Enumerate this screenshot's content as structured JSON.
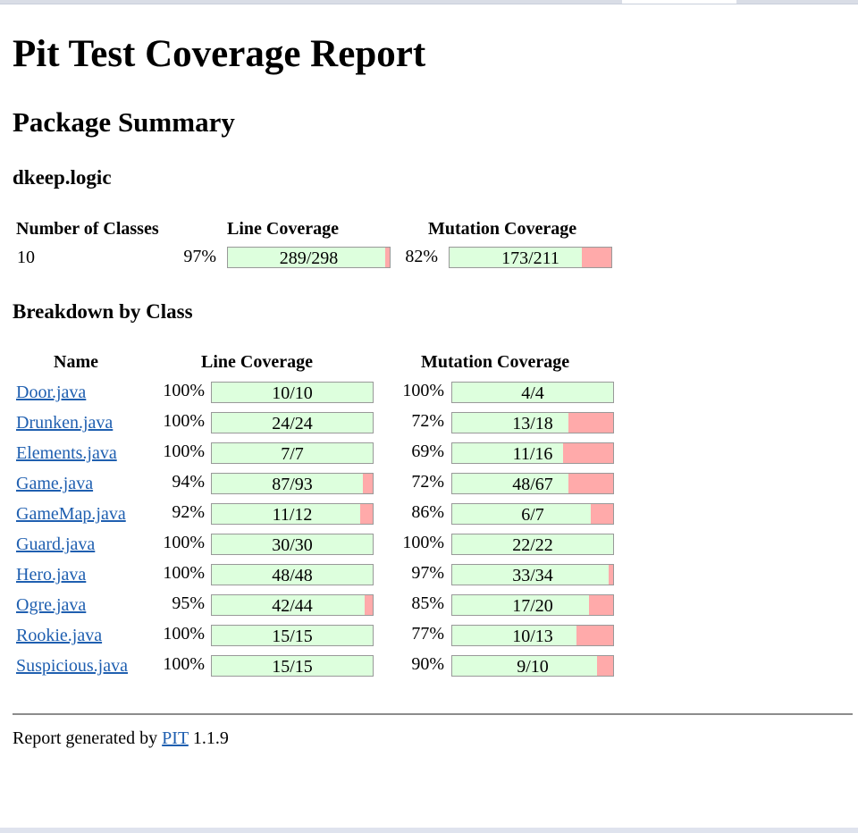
{
  "page": {
    "title": "Pit Test Coverage Report",
    "subtitle": "Package Summary",
    "package_name": "dkeep.logic",
    "breakdown_heading": "Breakdown by Class"
  },
  "summary": {
    "headers": {
      "classes": "Number of Classes",
      "line": "Line Coverage",
      "mutation": "Mutation Coverage"
    },
    "classes": "10",
    "line": {
      "percent": "97%",
      "text": "289/298",
      "fraction": 0.97
    },
    "mutation": {
      "percent": "82%",
      "text": "173/211",
      "fraction": 0.82
    }
  },
  "breakdown": {
    "headers": {
      "name": "Name",
      "line": "Line Coverage",
      "mutation": "Mutation Coverage"
    },
    "rows": [
      {
        "name": "Door.java",
        "line_pct": "100%",
        "line_text": "10/10",
        "line_frac": 1.0,
        "mut_pct": "100%",
        "mut_text": "4/4",
        "mut_frac": 1.0
      },
      {
        "name": "Drunken.java",
        "line_pct": "100%",
        "line_text": "24/24",
        "line_frac": 1.0,
        "mut_pct": "72%",
        "mut_text": "13/18",
        "mut_frac": 0.72
      },
      {
        "name": "Elements.java",
        "line_pct": "100%",
        "line_text": "7/7",
        "line_frac": 1.0,
        "mut_pct": "69%",
        "mut_text": "11/16",
        "mut_frac": 0.69
      },
      {
        "name": "Game.java",
        "line_pct": "94%",
        "line_text": "87/93",
        "line_frac": 0.94,
        "mut_pct": "72%",
        "mut_text": "48/67",
        "mut_frac": 0.72
      },
      {
        "name": "GameMap.java",
        "line_pct": "92%",
        "line_text": "11/12",
        "line_frac": 0.92,
        "mut_pct": "86%",
        "mut_text": "6/7",
        "mut_frac": 0.86
      },
      {
        "name": "Guard.java",
        "line_pct": "100%",
        "line_text": "30/30",
        "line_frac": 1.0,
        "mut_pct": "100%",
        "mut_text": "22/22",
        "mut_frac": 1.0
      },
      {
        "name": "Hero.java",
        "line_pct": "100%",
        "line_text": "48/48",
        "line_frac": 1.0,
        "mut_pct": "97%",
        "mut_text": "33/34",
        "mut_frac": 0.97
      },
      {
        "name": "Ogre.java",
        "line_pct": "95%",
        "line_text": "42/44",
        "line_frac": 0.95,
        "mut_pct": "85%",
        "mut_text": "17/20",
        "mut_frac": 0.85
      },
      {
        "name": "Rookie.java",
        "line_pct": "100%",
        "line_text": "15/15",
        "line_frac": 1.0,
        "mut_pct": "77%",
        "mut_text": "10/13",
        "mut_frac": 0.77
      },
      {
        "name": "Suspicious.java",
        "line_pct": "100%",
        "line_text": "15/15",
        "line_frac": 1.0,
        "mut_pct": "90%",
        "mut_text": "9/10",
        "mut_frac": 0.9
      }
    ]
  },
  "footer": {
    "prefix": "Report generated by",
    "link": "PIT",
    "version": "1.1.9"
  },
  "colors": {
    "covered": "#ddffdd",
    "uncovered": "#ffaaaa",
    "link": "#1f5fb0"
  }
}
